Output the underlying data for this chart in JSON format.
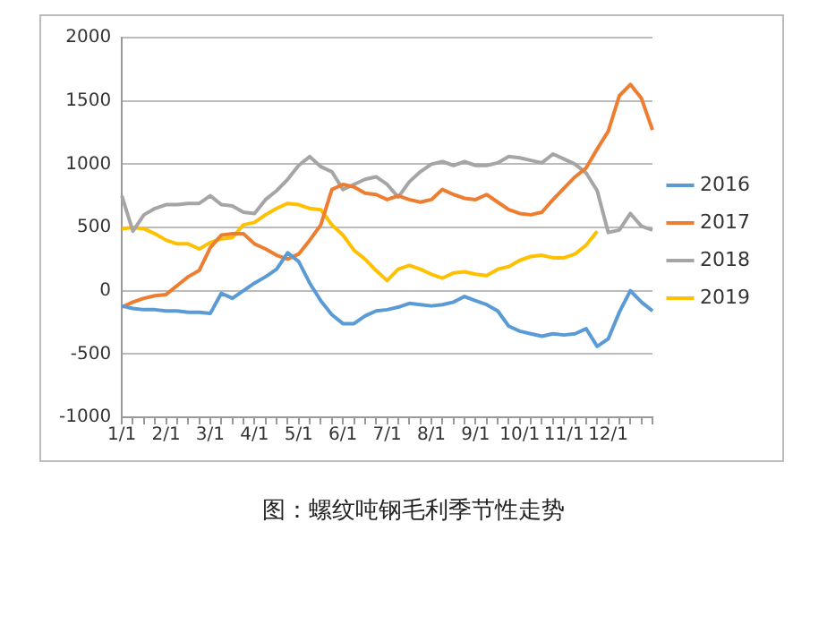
{
  "chart_data": {
    "type": "line",
    "title": "图：螺纹吨钢毛利季节性走势",
    "categories": [
      "1/1",
      null,
      null,
      null,
      "2/1",
      null,
      null,
      null,
      "3/1",
      null,
      null,
      null,
      "4/1",
      null,
      null,
      null,
      "5/1",
      null,
      null,
      null,
      "6/1",
      null,
      null,
      null,
      "7/1",
      null,
      null,
      null,
      "8/1",
      null,
      null,
      null,
      "9/1",
      null,
      null,
      null,
      "10/1",
      null,
      null,
      null,
      "11/1",
      null,
      null,
      null,
      "12/1",
      null,
      null,
      null,
      null
    ],
    "series": [
      {
        "name": "2016",
        "color": "#5b9bd5",
        "values": [
          -120,
          -140,
          -150,
          -150,
          -160,
          -160,
          -170,
          -170,
          -180,
          -20,
          -60,
          0,
          60,
          110,
          170,
          300,
          230,
          60,
          -80,
          -190,
          -260,
          -260,
          -200,
          -160,
          -150,
          -130,
          -100,
          -110,
          -120,
          -110,
          -90,
          -45,
          -80,
          -110,
          -160,
          -280,
          -320,
          -340,
          -360,
          -340,
          -350,
          -340,
          -300,
          -440,
          -380,
          -170,
          0,
          -90,
          -160
        ]
      },
      {
        "name": "2017",
        "color": "#ed7d31",
        "values": [
          -130,
          -90,
          -60,
          -40,
          -30,
          40,
          110,
          160,
          340,
          440,
          450,
          450,
          370,
          330,
          280,
          250,
          290,
          400,
          520,
          800,
          840,
          820,
          770,
          760,
          720,
          750,
          720,
          700,
          720,
          800,
          760,
          730,
          720,
          760,
          700,
          640,
          610,
          600,
          620,
          720,
          810,
          900,
          970,
          1120,
          1260,
          1540,
          1630,
          1520,
          1270
        ]
      },
      {
        "name": "2018",
        "color": "#a5a5a5",
        "values": [
          750,
          470,
          600,
          650,
          680,
          680,
          690,
          690,
          750,
          680,
          670,
          620,
          610,
          720,
          790,
          880,
          990,
          1060,
          980,
          940,
          800,
          840,
          880,
          900,
          840,
          740,
          860,
          940,
          1000,
          1020,
          990,
          1020,
          990,
          990,
          1010,
          1060,
          1050,
          1030,
          1010,
          1080,
          1040,
          1000,
          930,
          790,
          460,
          480,
          610,
          510,
          480
        ]
      },
      {
        "name": "2019",
        "color": "#ffc000",
        "values": [
          490,
          500,
          490,
          450,
          400,
          370,
          370,
          330,
          380,
          410,
          420,
          520,
          540,
          600,
          650,
          690,
          680,
          650,
          640,
          520,
          440,
          320,
          250,
          160,
          80,
          170,
          200,
          170,
          130,
          100,
          140,
          150,
          130,
          120,
          170,
          190,
          240,
          270,
          280,
          260,
          260,
          290,
          360,
          470,
          null,
          null,
          null,
          null,
          null
        ]
      }
    ],
    "ylim": [
      -1000,
      2000
    ],
    "yticks": [
      -1000,
      -500,
      0,
      500,
      1000,
      1500,
      2000
    ],
    "grid": "y",
    "legend": "right"
  }
}
